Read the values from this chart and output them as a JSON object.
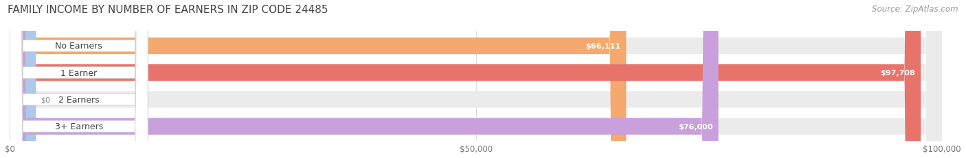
{
  "title": "FAMILY INCOME BY NUMBER OF EARNERS IN ZIP CODE 24485",
  "source": "Source: ZipAtlas.com",
  "categories": [
    "No Earners",
    "1 Earner",
    "2 Earners",
    "3+ Earners"
  ],
  "values": [
    66111,
    97708,
    0,
    76000
  ],
  "bar_colors": [
    "#f5a96e",
    "#e8736a",
    "#adc8e8",
    "#c9a0dc"
  ],
  "bar_bg_color": "#ebebeb",
  "xmax": 100000,
  "xticks": [
    0,
    50000,
    100000
  ],
  "xtick_labels": [
    "$0",
    "$50,000",
    "$100,000"
  ],
  "value_labels": [
    "$66,111",
    "$97,708",
    "$0",
    "$76,000"
  ],
  "title_fontsize": 11,
  "source_fontsize": 8.5,
  "label_fontsize": 9,
  "value_fontsize": 8,
  "tick_fontsize": 8.5,
  "background_color": "#ffffff"
}
